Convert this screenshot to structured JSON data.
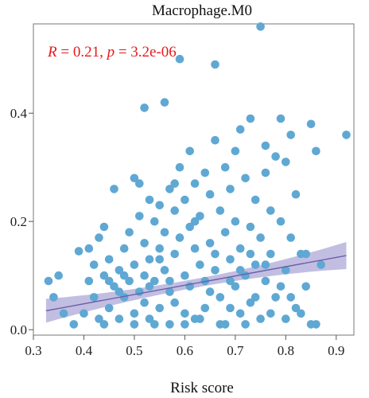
{
  "chart_data": {
    "type": "scatter",
    "title": "Macrophage.M0",
    "xlabel": "Risk score",
    "ylabel": "",
    "xlim": [
      0.3,
      0.935
    ],
    "ylim": [
      -0.01,
      0.565
    ],
    "xticks": [
      0.3,
      0.4,
      0.5,
      0.6,
      0.7,
      0.8,
      0.9
    ],
    "xtick_labels": [
      "0.3",
      "0.4",
      "0.5",
      "0.6",
      "0.7",
      "0.8",
      "0.9"
    ],
    "yticks": [
      0.0,
      0.2,
      0.4
    ],
    "ytick_labels": [
      "0.0",
      "0.2",
      "0.4"
    ],
    "grid": false,
    "annotation": {
      "text": "R = 0.21, p = 3.2e-06",
      "r_label": "R",
      "r_value": "= 0.21,",
      "p_label": "p",
      "p_value": "= 3.2e-06"
    },
    "colors": {
      "points": "#5fa8d3",
      "fit_line": "#6a5fa8",
      "confidence_band": "#b7b3dd",
      "annotation": "#e41a1c"
    },
    "fit": {
      "x": [
        0.325,
        0.92
      ],
      "y": [
        0.035,
        0.137
      ],
      "ci_halfwidth_left": 0.022,
      "ci_halfwidth_center": 0.008,
      "ci_halfwidth_right": 0.025
    },
    "points": [
      [
        0.33,
        0.09
      ],
      [
        0.34,
        0.06
      ],
      [
        0.35,
        0.1
      ],
      [
        0.38,
        0.01
      ],
      [
        0.39,
        0.145
      ],
      [
        0.4,
        0.03
      ],
      [
        0.41,
        0.09
      ],
      [
        0.41,
        0.15
      ],
      [
        0.42,
        0.06
      ],
      [
        0.42,
        0.12
      ],
      [
        0.43,
        0.02
      ],
      [
        0.43,
        0.17
      ],
      [
        0.44,
        0.1
      ],
      [
        0.44,
        0.19
      ],
      [
        0.45,
        0.04
      ],
      [
        0.45,
        0.13
      ],
      [
        0.46,
        0.08
      ],
      [
        0.46,
        0.26
      ],
      [
        0.47,
        0.11
      ],
      [
        0.47,
        0.02
      ],
      [
        0.48,
        0.15
      ],
      [
        0.48,
        0.06
      ],
      [
        0.49,
        0.18
      ],
      [
        0.49,
        0.09
      ],
      [
        0.5,
        0.28
      ],
      [
        0.5,
        0.12
      ],
      [
        0.5,
        0.03
      ],
      [
        0.51,
        0.27
      ],
      [
        0.51,
        0.21
      ],
      [
        0.51,
        0.07
      ],
      [
        0.52,
        0.41
      ],
      [
        0.52,
        0.16
      ],
      [
        0.52,
        0.05
      ],
      [
        0.53,
        0.24
      ],
      [
        0.53,
        0.13
      ],
      [
        0.53,
        0.02
      ],
      [
        0.54,
        0.2
      ],
      [
        0.54,
        0.09
      ],
      [
        0.55,
        0.23
      ],
      [
        0.55,
        0.15
      ],
      [
        0.55,
        0.04
      ],
      [
        0.56,
        0.42
      ],
      [
        0.56,
        0.18
      ],
      [
        0.56,
        0.11
      ],
      [
        0.57,
        0.26
      ],
      [
        0.57,
        0.07
      ],
      [
        0.57,
        0.01
      ],
      [
        0.58,
        0.22
      ],
      [
        0.58,
        0.14
      ],
      [
        0.58,
        0.05
      ],
      [
        0.59,
        0.5
      ],
      [
        0.59,
        0.3
      ],
      [
        0.59,
        0.17
      ],
      [
        0.6,
        0.24
      ],
      [
        0.6,
        0.1
      ],
      [
        0.6,
        0.03
      ],
      [
        0.61,
        0.33
      ],
      [
        0.61,
        0.19
      ],
      [
        0.61,
        0.08
      ],
      [
        0.62,
        0.27
      ],
      [
        0.62,
        0.15
      ],
      [
        0.62,
        0.02
      ],
      [
        0.63,
        0.21
      ],
      [
        0.63,
        0.12
      ],
      [
        0.64,
        0.29
      ],
      [
        0.64,
        0.09
      ],
      [
        0.64,
        0.04
      ],
      [
        0.65,
        0.25
      ],
      [
        0.65,
        0.16
      ],
      [
        0.66,
        0.49
      ],
      [
        0.66,
        0.35
      ],
      [
        0.66,
        0.11
      ],
      [
        0.67,
        0.22
      ],
      [
        0.67,
        0.06
      ],
      [
        0.68,
        0.3
      ],
      [
        0.68,
        0.18
      ],
      [
        0.68,
        0.01
      ],
      [
        0.69,
        0.26
      ],
      [
        0.69,
        0.13
      ],
      [
        0.7,
        0.33
      ],
      [
        0.7,
        0.2
      ],
      [
        0.7,
        0.08
      ],
      [
        0.71,
        0.37
      ],
      [
        0.71,
        0.15
      ],
      [
        0.71,
        0.03
      ],
      [
        0.72,
        0.28
      ],
      [
        0.72,
        0.1
      ],
      [
        0.73,
        0.39
      ],
      [
        0.73,
        0.19
      ],
      [
        0.73,
        0.05
      ],
      [
        0.74,
        0.24
      ],
      [
        0.74,
        0.12
      ],
      [
        0.75,
        0.56
      ],
      [
        0.75,
        0.17
      ],
      [
        0.75,
        0.02
      ],
      [
        0.76,
        0.34
      ],
      [
        0.76,
        0.29
      ],
      [
        0.76,
        0.09
      ],
      [
        0.77,
        0.22
      ],
      [
        0.77,
        0.14
      ],
      [
        0.78,
        0.32
      ],
      [
        0.78,
        0.06
      ],
      [
        0.79,
        0.39
      ],
      [
        0.79,
        0.2
      ],
      [
        0.8,
        0.31
      ],
      [
        0.8,
        0.11
      ],
      [
        0.81,
        0.36
      ],
      [
        0.81,
        0.17
      ],
      [
        0.82,
        0.25
      ],
      [
        0.82,
        0.04
      ],
      [
        0.83,
        0.14
      ],
      [
        0.84,
        0.08
      ],
      [
        0.85,
        0.38
      ],
      [
        0.85,
        0.01
      ],
      [
        0.86,
        0.33
      ],
      [
        0.87,
        0.12
      ],
      [
        0.92,
        0.36
      ],
      [
        0.36,
        0.03
      ],
      [
        0.44,
        0.01
      ],
      [
        0.47,
        0.07
      ],
      [
        0.5,
        0.01
      ],
      [
        0.54,
        0.01
      ],
      [
        0.57,
        0.09
      ],
      [
        0.6,
        0.01
      ],
      [
        0.63,
        0.02
      ],
      [
        0.65,
        0.07
      ],
      [
        0.67,
        0.01
      ],
      [
        0.69,
        0.04
      ],
      [
        0.72,
        0.01
      ],
      [
        0.74,
        0.06
      ],
      [
        0.77,
        0.03
      ],
      [
        0.8,
        0.02
      ],
      [
        0.83,
        0.03
      ],
      [
        0.86,
        0.01
      ],
      [
        0.62,
        0.2
      ],
      [
        0.58,
        0.27
      ],
      [
        0.55,
        0.13
      ],
      [
        0.53,
        0.08
      ],
      [
        0.66,
        0.14
      ],
      [
        0.69,
        0.09
      ],
      [
        0.71,
        0.11
      ],
      [
        0.73,
        0.14
      ],
      [
        0.48,
        0.1
      ],
      [
        0.45,
        0.09
      ],
      [
        0.52,
        0.1
      ],
      [
        0.79,
        0.08
      ],
      [
        0.84,
        0.14
      ],
      [
        0.81,
        0.06
      ],
      [
        0.76,
        0.12
      ]
    ]
  }
}
